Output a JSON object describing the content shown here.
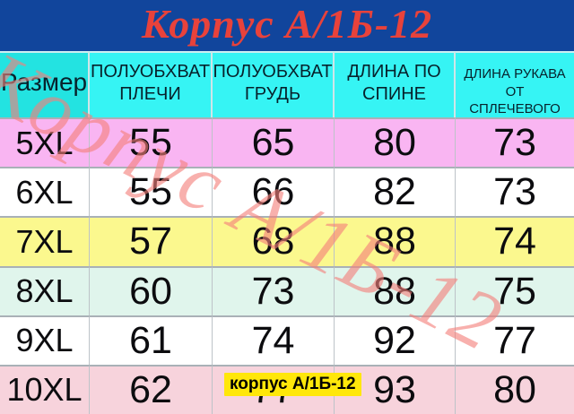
{
  "title": "Корпус А/1Б-12",
  "watermark": "Корпус А/1Б-12",
  "overlay_tag": "корпус А/1Б-12",
  "colors": {
    "title_bg": "#11459c",
    "title_text": "#e8423b",
    "header_bg": "#36f4f4",
    "header_bg_first": "#23e3e1",
    "watermark": "rgba(243,128,122,0.62)",
    "tag_bg": "#ffe70a",
    "row_colors": [
      "#f9b5f2",
      "#ffffff",
      "#fbf88e",
      "#e0f5ec",
      "#ffffff",
      "#f7d3dc"
    ]
  },
  "table": {
    "columns": [
      "Размер",
      "ПОЛУОБХВАТ ПЛЕЧИ",
      "ПОЛУОБХВАТ ГРУДЬ",
      "ДЛИНА ПО СПИНЕ",
      "ДЛИНА РУКАВА ОТ СПЛЕЧЕВОГО"
    ],
    "rows": [
      {
        "size": "5XL",
        "values": [
          "55",
          "65",
          "80",
          "73"
        ]
      },
      {
        "size": "6XL",
        "values": [
          "55",
          "66",
          "82",
          "73"
        ]
      },
      {
        "size": "7XL",
        "values": [
          "57",
          "68",
          "88",
          "74"
        ]
      },
      {
        "size": "8XL",
        "values": [
          "60",
          "73",
          "88",
          "75"
        ]
      },
      {
        "size": "9XL",
        "values": [
          "61",
          "74",
          "92",
          "77"
        ]
      },
      {
        "size": "10XL",
        "values": [
          "62",
          "77",
          "93",
          "80"
        ]
      }
    ]
  },
  "chart_data": {
    "type": "table",
    "title": "Корпус А/1Б-12",
    "columns": [
      "Размер",
      "ПОЛУОБХВАТ ПЛЕЧИ",
      "ПОЛУОБХВАТ ГРУДЬ",
      "ДЛИНА ПО СПИНЕ",
      "ДЛИНА РУКАВА ОТ СПЛЕЧЕВОГО"
    ],
    "rows": [
      [
        "5XL",
        55,
        65,
        80,
        73
      ],
      [
        "6XL",
        55,
        66,
        82,
        73
      ],
      [
        "7XL",
        57,
        68,
        88,
        74
      ],
      [
        "8XL",
        60,
        73,
        88,
        75
      ],
      [
        "9XL",
        61,
        74,
        92,
        77
      ],
      [
        "10XL",
        62,
        77,
        93,
        80
      ]
    ]
  }
}
